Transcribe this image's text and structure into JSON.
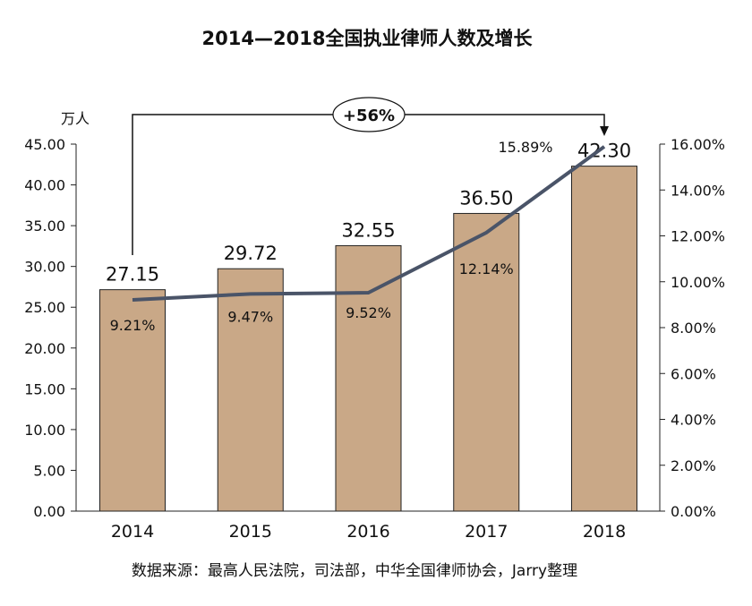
{
  "chart_data": {
    "type": "bar+line",
    "title": "2014—2018全国执业律师人数及增长",
    "ylabel_left": "万人",
    "categories": [
      "2014",
      "2015",
      "2016",
      "2017",
      "2018"
    ],
    "series": [
      {
        "type": "bar",
        "values": [
          27.15,
          29.72,
          32.55,
          36.5,
          42.3
        ],
        "labels": [
          "27.15",
          "29.72",
          "32.55",
          "36.50",
          "42.30"
        ],
        "color": "#C9A887"
      },
      {
        "type": "line",
        "axis": "right",
        "values": [
          9.21,
          9.47,
          9.52,
          12.14,
          15.89
        ],
        "labels": [
          "9.21%",
          "9.47%",
          "9.52%",
          "12.14%",
          "15.89%"
        ],
        "color": "#4A5468"
      }
    ],
    "ylim_left": [
      0,
      45
    ],
    "yticks_left": [
      "0.00",
      "5.00",
      "10.00",
      "15.00",
      "20.00",
      "25.00",
      "30.00",
      "35.00",
      "40.00",
      "45.00"
    ],
    "ylim_right": [
      0,
      16
    ],
    "yticks_right": [
      "0.00%",
      "2.00%",
      "4.00%",
      "6.00%",
      "8.00%",
      "10.00%",
      "12.00%",
      "14.00%",
      "16.00%"
    ],
    "annotation": "+56%",
    "grid": false,
    "source": "数据来源：最高人民法院，司法部，中华全国律师协会，Jarry整理"
  }
}
